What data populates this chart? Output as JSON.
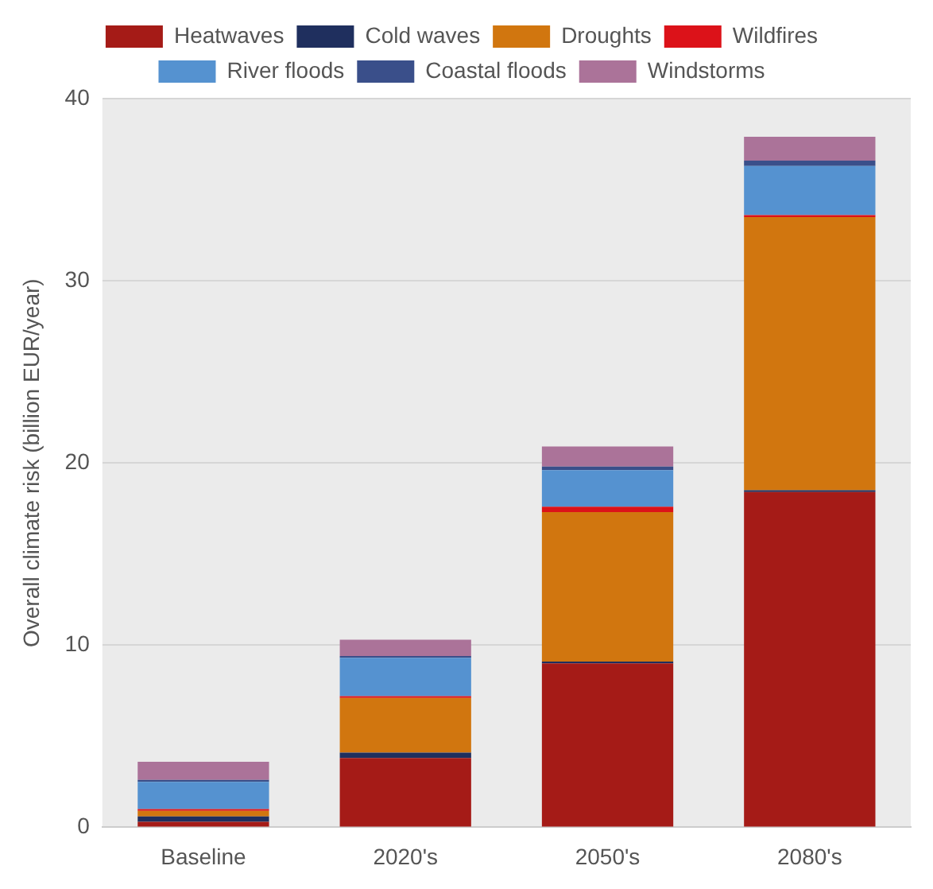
{
  "chart_data": {
    "type": "bar",
    "stacked": true,
    "ylabel": "Overall climate risk (billion EUR/year)",
    "categories": [
      "Baseline",
      "2020's",
      "2050's",
      "2080's"
    ],
    "ylim": [
      0,
      40
    ],
    "yticks": [
      0,
      10,
      20,
      30,
      40
    ],
    "grid": "y",
    "legend": "top",
    "series": [
      {
        "name": "Heatwaves",
        "color": "#a51b17",
        "values": [
          0.3,
          3.8,
          9.0,
          18.4
        ]
      },
      {
        "name": "Cold waves",
        "color": "#1f2f5e",
        "values": [
          0.3,
          0.3,
          0.1,
          0.1
        ]
      },
      {
        "name": "Droughts",
        "color": "#d1760f",
        "values": [
          0.3,
          3.0,
          8.2,
          15.0
        ]
      },
      {
        "name": "Wildfires",
        "color": "#dc1219",
        "values": [
          0.1,
          0.1,
          0.3,
          0.1
        ]
      },
      {
        "name": "River floods",
        "color": "#5592d0",
        "values": [
          1.5,
          2.1,
          2.0,
          2.7
        ]
      },
      {
        "name": "Coastal floods",
        "color": "#3a4f8a",
        "values": [
          0.1,
          0.1,
          0.2,
          0.3
        ]
      },
      {
        "name": "Windstorms",
        "color": "#ab7399",
        "values": [
          1.0,
          0.9,
          1.1,
          1.3
        ]
      }
    ]
  }
}
